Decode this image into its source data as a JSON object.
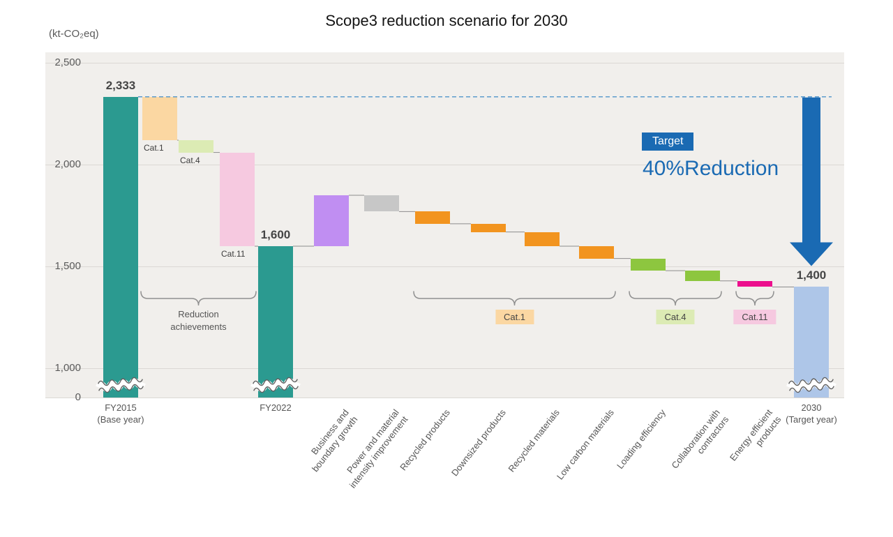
{
  "chart_data": {
    "type": "waterfall",
    "title": "Scope3 reduction scenario for 2030",
    "unit": "(kt-CO₂eq)",
    "ylabel": "kt-CO2eq",
    "ylim": [
      0,
      2500
    ],
    "axis_break_below_value": 950,
    "baseline_dashed_at": 2333,
    "grid": true,
    "y_ticks": [
      {
        "label": "2,500",
        "value": 2500
      },
      {
        "label": "2,000",
        "value": 2000
      },
      {
        "label": "1,500",
        "value": 1500
      },
      {
        "label": "1,000",
        "value": 1000
      },
      {
        "label": "0",
        "value": 0
      }
    ],
    "annotations": {
      "target_badge": "Target",
      "target_text": "40%Reduction"
    },
    "colors": {
      "total_bar": "#2b9a90",
      "final_bar": "#aec6e8",
      "cat1_light": "#fbd7a2",
      "cat4_light": "#dcebb4",
      "cat11_light": "#f6c9e0",
      "growth": "#c08ef2",
      "intensity": "#c7c7c7",
      "cat1_strong": "#f2941f",
      "cat4_strong": "#8dc63f",
      "cat11_strong": "#ec0f8d",
      "accent_blue": "#1a6ab3",
      "dashed_line": "#4f94ca",
      "plot_background": "#f1efec"
    },
    "steps": [
      {
        "name": "fy2015",
        "kind": "total",
        "value": 2333,
        "value_label": "2,333",
        "xlabel": "FY2015\n(Base year)",
        "rotated": false,
        "color": "#2b9a90",
        "wave": true
      },
      {
        "name": "cat1-achieved",
        "kind": "delta",
        "value": -213,
        "tag": "Cat.1",
        "color": "#fbd7a2"
      },
      {
        "name": "cat4-achieved",
        "kind": "delta",
        "value": -60,
        "tag": "Cat.4",
        "color": "#dcebb4"
      },
      {
        "name": "cat11-achieved",
        "kind": "delta",
        "value": -460,
        "tag": "Cat.11",
        "color": "#f6c9e0"
      },
      {
        "name": "fy2022",
        "kind": "total",
        "value": 1600,
        "value_label": "1,600",
        "xlabel": "FY2022",
        "rotated": false,
        "color": "#2b9a90",
        "wave": true
      },
      {
        "name": "business-boundary-growth",
        "kind": "delta",
        "value": 250,
        "xlabel": "Business and\nboundary growth",
        "rotated": true,
        "color": "#c08ef2"
      },
      {
        "name": "power-material-intensity-improvement",
        "kind": "delta",
        "value": -80,
        "xlabel": "Power and material\nintensity improvement",
        "rotated": true,
        "color": "#c7c7c7"
      },
      {
        "name": "recycled-products",
        "kind": "delta",
        "value": -60,
        "xlabel": "Recycled products",
        "rotated": true,
        "color": "#f2941f"
      },
      {
        "name": "downsized-products",
        "kind": "delta",
        "value": -40,
        "xlabel": "Downsized products",
        "rotated": true,
        "color": "#f2941f"
      },
      {
        "name": "recycled-materials",
        "kind": "delta",
        "value": -70,
        "xlabel": "Recycled materials",
        "rotated": true,
        "color": "#f2941f"
      },
      {
        "name": "low-carbon-materials",
        "kind": "delta",
        "value": -60,
        "xlabel": "Low carbon materials",
        "rotated": true,
        "color": "#f2941f"
      },
      {
        "name": "loading-efficiency",
        "kind": "delta",
        "value": -60,
        "xlabel": "Loading efficiency",
        "rotated": true,
        "color": "#8dc63f"
      },
      {
        "name": "collaboration-with-contractors",
        "kind": "delta",
        "value": -50,
        "xlabel": "Collaboration with\ncontractors",
        "rotated": true,
        "color": "#8dc63f"
      },
      {
        "name": "energy-efficient-products",
        "kind": "delta",
        "value": -30,
        "xlabel": "Energy efficient\nproducts",
        "rotated": true,
        "color": "#ec0f8d"
      },
      {
        "name": "2030",
        "kind": "total",
        "value": 1400,
        "value_label": "1,400",
        "xlabel": "2030\n(Target year)",
        "rotated": false,
        "color": "#aec6e8",
        "wave": true
      }
    ],
    "groups": [
      {
        "label": "Reduction\nachievements",
        "badge": false,
        "from": 1,
        "to": 3
      },
      {
        "label": "Cat.1",
        "badge": true,
        "badge_color": "#fbd7a2",
        "from": 7,
        "to": 10
      },
      {
        "label": "Cat.4",
        "badge": true,
        "badge_color": "#dcebb4",
        "from": 11,
        "to": 12
      },
      {
        "label": "Cat.11",
        "badge": true,
        "badge_color": "#f6c9e0",
        "from": 13,
        "to": 13
      }
    ]
  }
}
